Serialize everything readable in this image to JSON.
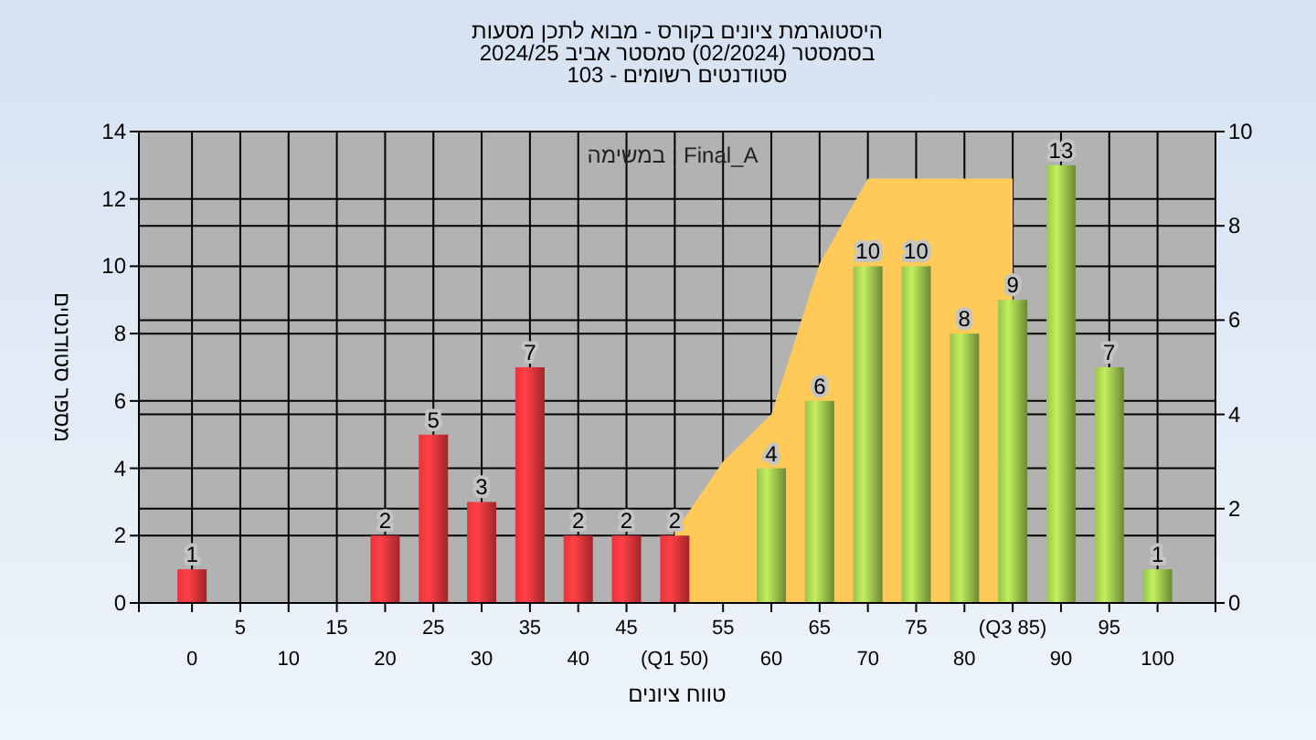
{
  "chart_data": {
    "type": "bar",
    "title": "היסטוגרמת ציונים בקורס - מבוא לתכן מסעות",
    "subtitle": "בסמסטר  (02/2024)  סמסטר אביב 2024/25\nסטודנטים רשומים - 103",
    "xlabel": "טווח ציונים",
    "ylabel": "מספר סטודנטים",
    "annotations": [
      "במשימה : Final_A"
    ],
    "categories": [
      "0",
      "5",
      "10",
      "15",
      "20",
      "25",
      "30",
      "35",
      "40",
      "45",
      "(Q1 50)",
      "55",
      "60",
      "65",
      "70",
      "75",
      "80",
      "(Q3 85)",
      "90",
      "95",
      "100"
    ],
    "series": [
      {
        "type": "area",
        "axis": "y2",
        "color": "#ffca58",
        "values": [
          null,
          null,
          null,
          null,
          null,
          null,
          null,
          null,
          null,
          null,
          1.5,
          3,
          4,
          7.2,
          9,
          9,
          9,
          9,
          null,
          null,
          null
        ]
      },
      {
        "value_labels": [
          "1",
          null,
          null,
          null,
          "2",
          "5",
          "3",
          "7",
          "2",
          "2",
          "2",
          null,
          "4",
          "6",
          "10",
          "10",
          "8",
          "9",
          "13",
          "7",
          "1"
        ],
        "colors": [
          "#e8343a",
          null,
          null,
          null,
          "#e8343a",
          "#e8343a",
          "#e8343a",
          "#e8343a",
          "#e8343a",
          "#e8343a",
          "#e8343a",
          null,
          "#9cc24c",
          "#9cc24c",
          "#9cc24c",
          "#9cc24c",
          "#9cc24c",
          "#9cc24c",
          "#9cc24c",
          "#9cc24c",
          "#9cc24c"
        ],
        "values": [
          1,
          null,
          null,
          null,
          2,
          5,
          3,
          7,
          2,
          2,
          2,
          null,
          4,
          6,
          10,
          10,
          8,
          9,
          13,
          7,
          1
        ]
      }
    ],
    "ylim": [
      0,
      14
    ],
    "yticks": [
      0,
      2,
      4,
      6,
      8,
      10,
      12,
      14
    ],
    "y2lim": [
      0,
      10
    ],
    "y2ticks": [
      0,
      2,
      4,
      6,
      8,
      10
    ],
    "grid": true
  }
}
